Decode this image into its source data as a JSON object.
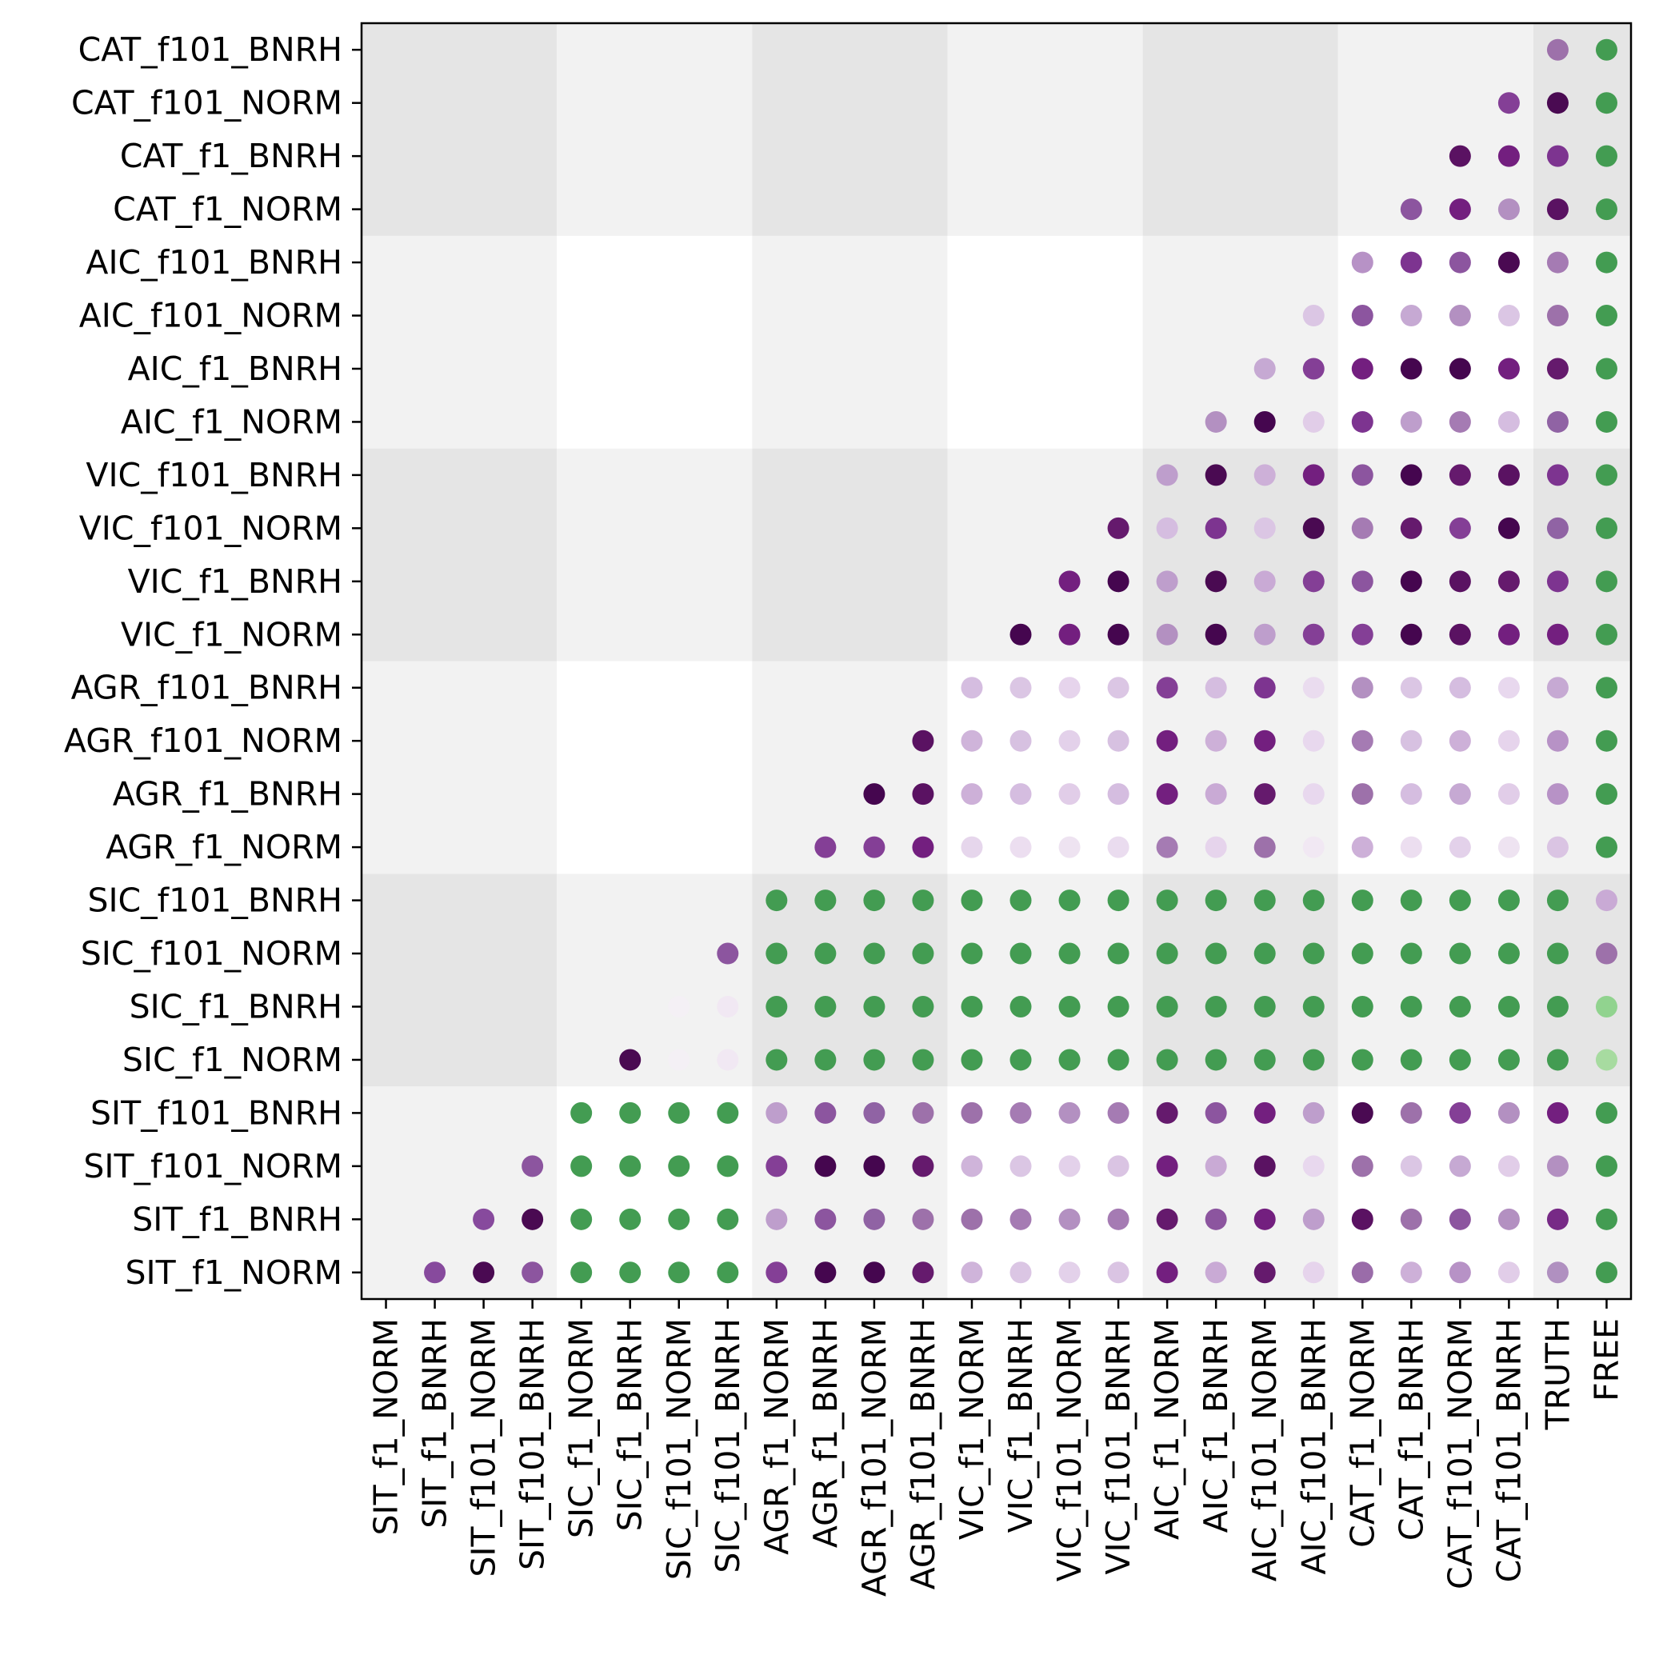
{
  "chart_data": {
    "type": "scatter",
    "title": "",
    "xlabel": "",
    "ylabel": "",
    "grid": false,
    "x_categories": [
      "SIT_f1_NORM",
      "SIT_f1_BNRH",
      "SIT_f101_NORM",
      "SIT_f101_BNRH",
      "SIC_f1_NORM",
      "SIC_f1_BNRH",
      "SIC_f101_NORM",
      "SIC_f101_BNRH",
      "AGR_f1_NORM",
      "AGR_f1_BNRH",
      "AGR_f101_NORM",
      "AGR_f101_BNRH",
      "VIC_f1_NORM",
      "VIC_f1_BNRH",
      "VIC_f101_NORM",
      "VIC_f101_BNRH",
      "AIC_f1_NORM",
      "AIC_f1_BNRH",
      "AIC_f101_NORM",
      "AIC_f101_BNRH",
      "CAT_f1_NORM",
      "CAT_f1_BNRH",
      "CAT_f101_NORM",
      "CAT_f101_BNRH",
      "TRUTH",
      "FREE"
    ],
    "y_categories": [
      "SIT_f1_NORM",
      "SIT_f1_BNRH",
      "SIT_f101_NORM",
      "SIT_f101_BNRH",
      "SIC_f1_NORM",
      "SIC_f1_BNRH",
      "SIC_f101_NORM",
      "SIC_f101_BNRH",
      "AGR_f1_NORM",
      "AGR_f1_BNRH",
      "AGR_f101_NORM",
      "AGR_f101_BNRH",
      "VIC_f1_NORM",
      "VIC_f1_BNRH",
      "VIC_f101_NORM",
      "VIC_f101_BNRH",
      "AIC_f1_NORM",
      "AIC_f1_BNRH",
      "AIC_f101_NORM",
      "AIC_f101_BNRH",
      "CAT_f1_NORM",
      "CAT_f1_BNRH",
      "CAT_f101_NORM",
      "CAT_f101_BNRH"
    ],
    "background_shading": {
      "group_size": 4,
      "colors": [
        "#ffffff",
        "#f2f2f2",
        "#e5e5e5"
      ]
    },
    "color_legend": {
      "purple": "#40004b",
      "green": "#3a9a52"
    },
    "points": [
      {
        "row": "SIT_f1_NORM",
        "values": {
          "SIT_f1_BNRH": "#874a9d",
          "SIT_f101_NORM": "#4a0a52",
          "SIT_f101_BNRH": "#8c559f",
          "SIC_f1_NORM": "#439c52",
          "SIC_f1_BNRH": "#439c52",
          "SIC_f101_NORM": "#439c52",
          "SIC_f101_BNRH": "#439c52",
          "AGR_f1_NORM": "#843f96",
          "AGR_f1_BNRH": "#45064f",
          "AGR_f101_NORM": "#45064f",
          "AGR_f101_BNRH": "#651a6d",
          "VIC_f1_NORM": "#cfb4da",
          "VIC_f1_BNRH": "#dbc6e4",
          "VIC_f101_NORM": "#e3d1ea",
          "VIC_f101_BNRH": "#dac4e3",
          "AIC_f1_NORM": "#731f7f",
          "AIC_f1_BNRH": "#c9aad5",
          "AIC_f101_NORM": "#651a6d",
          "AIC_f101_BNRH": "#e6d4ec",
          "CAT_f1_NORM": "#9a6ca9",
          "CAT_f1_BNRH": "#cdb0d8",
          "CAT_f101_NORM": "#b792c6",
          "CAT_f101_BNRH": "#e1cde8",
          "TRUTH": "#b090c0",
          "FREE": "#439c52"
        }
      },
      {
        "row": "SIT_f1_BNRH",
        "values": {
          "SIT_f101_NORM": "#874a9d",
          "SIT_f101_BNRH": "#4a0a52",
          "SIC_f1_NORM": "#439c52",
          "SIC_f1_BNRH": "#439c52",
          "SIC_f101_NORM": "#439c52",
          "SIC_f101_BNRH": "#439c52",
          "AGR_f1_NORM": "#be9ecc",
          "AGR_f1_BNRH": "#8c559f",
          "AGR_f101_NORM": "#9063a4",
          "AGR_f101_BNRH": "#9d71aa",
          "VIC_f1_NORM": "#9d71aa",
          "VIC_f1_BNRH": "#a57bb3",
          "VIC_f101_NORM": "#b390c1",
          "VIC_f101_BNRH": "#a57bb3",
          "AIC_f1_NORM": "#651a6d",
          "AIC_f1_BNRH": "#8c559f",
          "AIC_f101_NORM": "#731f7f",
          "AIC_f101_BNRH": "#be9ecc",
          "CAT_f1_NORM": "#5a1262",
          "CAT_f1_BNRH": "#9d71aa",
          "CAT_f101_NORM": "#8c559f",
          "CAT_f101_BNRH": "#b390c1",
          "TRUTH": "#772a86",
          "FREE": "#439c52"
        }
      },
      {
        "row": "SIT_f101_NORM",
        "values": {
          "SIT_f101_BNRH": "#8c559f",
          "SIC_f1_NORM": "#439c52",
          "SIC_f1_BNRH": "#439c52",
          "SIC_f101_NORM": "#439c52",
          "SIC_f101_BNRH": "#439c52",
          "AGR_f1_NORM": "#843f96",
          "AGR_f1_BNRH": "#45064f",
          "AGR_f101_NORM": "#45064f",
          "AGR_f101_BNRH": "#651a6d",
          "VIC_f1_NORM": "#cfb4da",
          "VIC_f1_BNRH": "#dbc6e4",
          "VIC_f101_NORM": "#e3d1ea",
          "VIC_f101_BNRH": "#dac4e3",
          "AIC_f1_NORM": "#731f7f",
          "AIC_f1_BNRH": "#c9aad5",
          "AIC_f101_NORM": "#5a1262",
          "AIC_f101_BNRH": "#e8d8ee",
          "CAT_f1_NORM": "#9d71aa",
          "CAT_f1_BNRH": "#dbc6e4",
          "CAT_f101_NORM": "#c6a9d3",
          "CAT_f101_BNRH": "#e1cde8",
          "TRUTH": "#b390c1",
          "FREE": "#439c52"
        }
      },
      {
        "row": "SIT_f101_BNRH",
        "values": {
          "SIC_f1_NORM": "#439c52",
          "SIC_f1_BNRH": "#439c52",
          "SIC_f101_NORM": "#439c52",
          "SIC_f101_BNRH": "#439c52",
          "AGR_f1_NORM": "#be9ecc",
          "AGR_f1_BNRH": "#8c559f",
          "AGR_f101_NORM": "#9063a4",
          "AGR_f101_BNRH": "#9d71aa",
          "VIC_f1_NORM": "#9d71aa",
          "VIC_f1_BNRH": "#a57bb3",
          "VIC_f101_NORM": "#b390c1",
          "VIC_f101_BNRH": "#a57bb3",
          "AIC_f1_NORM": "#651a6d",
          "AIC_f1_BNRH": "#8c559f",
          "AIC_f101_NORM": "#731f7f",
          "AIC_f101_BNRH": "#be9ecc",
          "CAT_f1_NORM": "#4a0a52",
          "CAT_f1_BNRH": "#9d71aa",
          "CAT_f101_NORM": "#843f96",
          "CAT_f101_BNRH": "#b390c1",
          "TRUTH": "#731f7f",
          "FREE": "#439c52"
        }
      },
      {
        "row": "SIC_f1_NORM",
        "values": {
          "SIC_f1_BNRH": "#4a0a52",
          "SIC_f101_NORM": "#f4f0f5",
          "SIC_f101_BNRH": "#f1e8f3",
          "AGR_f1_NORM": "#439c52",
          "AGR_f1_BNRH": "#439c52",
          "AGR_f101_NORM": "#439c52",
          "AGR_f101_BNRH": "#439c52",
          "VIC_f1_NORM": "#439c52",
          "VIC_f1_BNRH": "#439c52",
          "VIC_f101_NORM": "#439c52",
          "VIC_f101_BNRH": "#439c52",
          "AIC_f1_NORM": "#439c52",
          "AIC_f1_BNRH": "#439c52",
          "AIC_f101_NORM": "#439c52",
          "AIC_f101_BNRH": "#439c52",
          "CAT_f1_NORM": "#439c52",
          "CAT_f1_BNRH": "#439c52",
          "CAT_f101_NORM": "#439c52",
          "CAT_f101_BNRH": "#439c52",
          "TRUTH": "#439c52",
          "FREE": "#a7dba0"
        }
      },
      {
        "row": "SIC_f1_BNRH",
        "values": {
          "SIC_f101_NORM": "#f4f0f5",
          "SIC_f101_BNRH": "#f1e8f3",
          "AGR_f1_NORM": "#439c52",
          "AGR_f1_BNRH": "#439c52",
          "AGR_f101_NORM": "#439c52",
          "AGR_f101_BNRH": "#439c52",
          "VIC_f1_NORM": "#439c52",
          "VIC_f1_BNRH": "#439c52",
          "VIC_f101_NORM": "#439c52",
          "VIC_f101_BNRH": "#439c52",
          "AIC_f1_NORM": "#439c52",
          "AIC_f1_BNRH": "#439c52",
          "AIC_f101_NORM": "#439c52",
          "AIC_f101_BNRH": "#439c52",
          "CAT_f1_NORM": "#439c52",
          "CAT_f1_BNRH": "#439c52",
          "CAT_f101_NORM": "#439c52",
          "CAT_f101_BNRH": "#439c52",
          "TRUTH": "#439c52",
          "FREE": "#91d38f"
        }
      },
      {
        "row": "SIC_f101_NORM",
        "values": {
          "SIC_f101_BNRH": "#8c559f",
          "AGR_f1_NORM": "#439c52",
          "AGR_f1_BNRH": "#439c52",
          "AGR_f101_NORM": "#439c52",
          "AGR_f101_BNRH": "#439c52",
          "VIC_f1_NORM": "#439c52",
          "VIC_f1_BNRH": "#439c52",
          "VIC_f101_NORM": "#439c52",
          "VIC_f101_BNRH": "#439c52",
          "AIC_f1_NORM": "#439c52",
          "AIC_f1_BNRH": "#439c52",
          "AIC_f101_NORM": "#439c52",
          "AIC_f101_BNRH": "#439c52",
          "CAT_f1_NORM": "#439c52",
          "CAT_f1_BNRH": "#439c52",
          "CAT_f101_NORM": "#439c52",
          "CAT_f101_BNRH": "#439c52",
          "TRUTH": "#439c52",
          "FREE": "#9d71aa"
        }
      },
      {
        "row": "SIC_f101_BNRH",
        "values": {
          "AGR_f1_NORM": "#439c52",
          "AGR_f1_BNRH": "#439c52",
          "AGR_f101_NORM": "#439c52",
          "AGR_f101_BNRH": "#439c52",
          "VIC_f1_NORM": "#439c52",
          "VIC_f1_BNRH": "#439c52",
          "VIC_f101_NORM": "#439c52",
          "VIC_f101_BNRH": "#439c52",
          "AIC_f1_NORM": "#439c52",
          "AIC_f1_BNRH": "#439c52",
          "AIC_f101_NORM": "#439c52",
          "AIC_f101_BNRH": "#439c52",
          "CAT_f1_NORM": "#439c52",
          "CAT_f1_BNRH": "#439c52",
          "CAT_f101_NORM": "#439c52",
          "CAT_f101_BNRH": "#439c52",
          "TRUTH": "#439c52",
          "FREE": "#c9aad5"
        }
      },
      {
        "row": "AGR_f1_NORM",
        "values": {
          "AGR_f1_BNRH": "#843f96",
          "AGR_f101_NORM": "#843f96",
          "AGR_f101_BNRH": "#731f7f",
          "VIC_f1_NORM": "#e6d6ec",
          "VIC_f1_BNRH": "#ecdef0",
          "VIC_f101_NORM": "#eee3f1",
          "VIC_f101_BNRH": "#eadcef",
          "AIC_f1_NORM": "#a57bb3",
          "AIC_f1_BNRH": "#e6d4ec",
          "AIC_f101_NORM": "#9d71aa",
          "AIC_f101_BNRH": "#f1e8f3",
          "CAT_f1_NORM": "#cdb0d8",
          "CAT_f1_BNRH": "#ecdef0",
          "CAT_f101_NORM": "#e3d1ea",
          "CAT_f101_BNRH": "#eee3f1",
          "TRUTH": "#dac4e3",
          "FREE": "#439c52"
        }
      },
      {
        "row": "AGR_f1_BNRH",
        "values": {
          "AGR_f101_NORM": "#45064f",
          "AGR_f101_BNRH": "#5a1262",
          "VIC_f1_NORM": "#cdb0d8",
          "VIC_f1_BNRH": "#d5bde0",
          "VIC_f101_NORM": "#e1cde8",
          "VIC_f101_BNRH": "#d5bde0",
          "AIC_f1_NORM": "#731f7f",
          "AIC_f1_BNRH": "#c9aad5",
          "AIC_f101_NORM": "#651a6d",
          "AIC_f101_BNRH": "#e8d8ee",
          "CAT_f1_NORM": "#9d71aa",
          "CAT_f1_BNRH": "#d5bde0",
          "CAT_f101_NORM": "#c6a9d3",
          "CAT_f101_BNRH": "#e1cde8",
          "TRUTH": "#b792c6",
          "FREE": "#439c52"
        }
      },
      {
        "row": "AGR_f101_NORM",
        "values": {
          "AGR_f101_BNRH": "#5a1262",
          "VIC_f1_NORM": "#cfb4da",
          "VIC_f1_BNRH": "#d7c1e1",
          "VIC_f101_NORM": "#e3d1ea",
          "VIC_f101_BNRH": "#d7c1e1",
          "AIC_f1_NORM": "#731f7f",
          "AIC_f1_BNRH": "#cdb0d8",
          "AIC_f101_NORM": "#731f7f",
          "AIC_f101_BNRH": "#e8d8ee",
          "CAT_f1_NORM": "#a57bb3",
          "CAT_f1_BNRH": "#d7c1e1",
          "CAT_f101_NORM": "#cdb0d8",
          "CAT_f101_BNRH": "#e6d4ec",
          "TRUTH": "#b792c6",
          "FREE": "#439c52"
        }
      },
      {
        "row": "AGR_f101_BNRH",
        "values": {
          "VIC_f1_NORM": "#d5bde0",
          "VIC_f1_BNRH": "#dbc6e4",
          "VIC_f101_NORM": "#e6d4ec",
          "VIC_f101_BNRH": "#dbc6e4",
          "AIC_f1_NORM": "#843f96",
          "AIC_f1_BNRH": "#d5bde0",
          "AIC_f101_NORM": "#7d3490",
          "AIC_f101_BNRH": "#eadcef",
          "CAT_f1_NORM": "#b390c1",
          "CAT_f1_BNRH": "#dbc6e4",
          "CAT_f101_NORM": "#d5bde0",
          "CAT_f101_BNRH": "#e8d8ee",
          "TRUTH": "#c6a9d3",
          "FREE": "#439c52"
        }
      },
      {
        "row": "VIC_f1_NORM",
        "values": {
          "VIC_f1_BNRH": "#45064f",
          "VIC_f101_NORM": "#731f7f",
          "VIC_f101_BNRH": "#45064f",
          "AIC_f1_NORM": "#b390c1",
          "AIC_f1_BNRH": "#45064f",
          "AIC_f101_NORM": "#be9ecc",
          "AIC_f101_BNRH": "#843f96",
          "CAT_f1_NORM": "#843f96",
          "CAT_f1_BNRH": "#45064f",
          "CAT_f101_NORM": "#5a1262",
          "CAT_f101_BNRH": "#731f7f",
          "TRUTH": "#731f7f",
          "FREE": "#439c52"
        }
      },
      {
        "row": "VIC_f1_BNRH",
        "values": {
          "VIC_f101_NORM": "#731f7f",
          "VIC_f101_BNRH": "#45064f",
          "AIC_f1_NORM": "#be9ecc",
          "AIC_f1_BNRH": "#4a0a52",
          "AIC_f101_NORM": "#c9aad5",
          "AIC_f101_BNRH": "#843f96",
          "CAT_f1_NORM": "#8c559f",
          "CAT_f1_BNRH": "#45064f",
          "CAT_f101_NORM": "#5a1262",
          "CAT_f101_BNRH": "#651a6d",
          "TRUTH": "#7d3490",
          "FREE": "#439c52"
        }
      },
      {
        "row": "VIC_f101_NORM",
        "values": {
          "VIC_f101_BNRH": "#651a6d",
          "AIC_f1_NORM": "#d5bde0",
          "AIC_f1_BNRH": "#7d3490",
          "AIC_f101_NORM": "#dbc6e4",
          "AIC_f101_BNRH": "#4a0a52",
          "CAT_f1_NORM": "#a57bb3",
          "CAT_f1_BNRH": "#651a6d",
          "CAT_f101_NORM": "#843f96",
          "CAT_f101_BNRH": "#45064f",
          "TRUTH": "#9063a4",
          "FREE": "#439c52"
        }
      },
      {
        "row": "VIC_f101_BNRH",
        "values": {
          "AIC_f1_NORM": "#be9ecc",
          "AIC_f1_BNRH": "#4a0a52",
          "AIC_f101_NORM": "#cdb0d8",
          "AIC_f101_BNRH": "#731f7f",
          "CAT_f1_NORM": "#8c559f",
          "CAT_f1_BNRH": "#45064f",
          "CAT_f101_NORM": "#651a6d",
          "CAT_f101_BNRH": "#5a1262",
          "TRUTH": "#7d3490",
          "FREE": "#439c52"
        }
      },
      {
        "row": "AIC_f1_NORM",
        "values": {
          "AIC_f1_BNRH": "#b390c1",
          "AIC_f101_NORM": "#45064f",
          "AIC_f101_BNRH": "#e1cde8",
          "CAT_f1_NORM": "#7d3490",
          "CAT_f1_BNRH": "#be9ecc",
          "CAT_f101_NORM": "#a57bb3",
          "CAT_f101_BNRH": "#d5bde0",
          "TRUTH": "#9063a4",
          "FREE": "#439c52"
        }
      },
      {
        "row": "AIC_f1_BNRH",
        "values": {
          "AIC_f101_NORM": "#c6a9d3",
          "AIC_f101_BNRH": "#843f96",
          "CAT_f1_NORM": "#731f7f",
          "CAT_f1_BNRH": "#45064f",
          "CAT_f101_NORM": "#45064f",
          "CAT_f101_BNRH": "#731f7f",
          "TRUTH": "#651a6d",
          "FREE": "#439c52"
        }
      },
      {
        "row": "AIC_f101_NORM",
        "values": {
          "AIC_f101_BNRH": "#dbc6e4",
          "CAT_f1_NORM": "#8c559f",
          "CAT_f1_BNRH": "#c6a9d3",
          "CAT_f101_NORM": "#b390c1",
          "CAT_f101_BNRH": "#dbc6e4",
          "TRUTH": "#9d71aa",
          "FREE": "#439c52"
        }
      },
      {
        "row": "AIC_f101_BNRH",
        "values": {
          "CAT_f1_NORM": "#b792c6",
          "CAT_f1_BNRH": "#7d3490",
          "CAT_f101_NORM": "#8c559f",
          "CAT_f101_BNRH": "#4a0a52",
          "TRUTH": "#a57bb3",
          "FREE": "#439c52"
        }
      },
      {
        "row": "CAT_f1_NORM",
        "values": {
          "CAT_f1_BNRH": "#8c559f",
          "CAT_f101_NORM": "#731f7f",
          "CAT_f101_BNRH": "#b390c1",
          "TRUTH": "#5a1262",
          "FREE": "#439c52"
        }
      },
      {
        "row": "CAT_f1_BNRH",
        "values": {
          "CAT_f101_NORM": "#5a1262",
          "CAT_f101_BNRH": "#731f7f",
          "TRUTH": "#7d3490",
          "FREE": "#439c52"
        }
      },
      {
        "row": "CAT_f101_NORM",
        "values": {
          "CAT_f101_BNRH": "#843f96",
          "TRUTH": "#4a0a52",
          "FREE": "#439c52"
        }
      },
      {
        "row": "CAT_f101_BNRH",
        "values": {
          "TRUTH": "#9d71aa",
          "FREE": "#439c52"
        }
      }
    ]
  }
}
